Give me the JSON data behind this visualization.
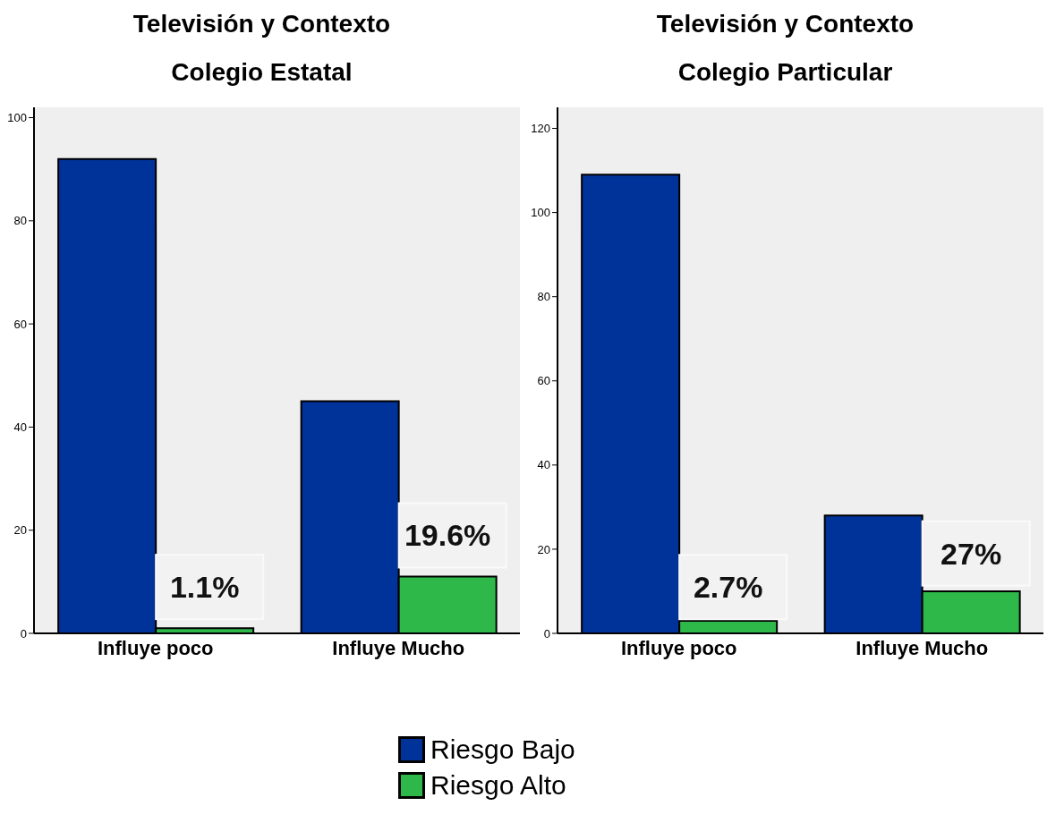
{
  "chart_data": [
    {
      "type": "bar",
      "title": "Televisión y Contexto",
      "subtitle": "Colegio Estatal",
      "categories": [
        "Influye poco",
        "Influye Mucho"
      ],
      "ylim": [
        0,
        102
      ],
      "yticks": [
        0,
        20,
        40,
        60,
        80,
        100
      ],
      "legend": "bottom",
      "series": [
        {
          "name": "Riesgo Bajo",
          "color": "#003399",
          "values": [
            92,
            45
          ]
        },
        {
          "name": "Riesgo Alto",
          "color": "#2eb84a",
          "values": [
            1,
            11
          ]
        }
      ],
      "annotations": [
        {
          "text": "1.1%",
          "x": "Influye poco",
          "y": 9
        },
        {
          "text": "19.6%",
          "x": "Influye Mucho",
          "y": 19
        }
      ]
    },
    {
      "type": "bar",
      "title": "Televisión y Contexto",
      "subtitle": "Colegio Particular",
      "categories": [
        "Influye poco",
        "Influye Mucho"
      ],
      "ylim": [
        0,
        125
      ],
      "yticks": [
        0,
        20,
        40,
        60,
        80,
        100,
        120
      ],
      "legend": "bottom",
      "series": [
        {
          "name": "Riesgo Bajo",
          "color": "#003399",
          "values": [
            109,
            28
          ]
        },
        {
          "name": "Riesgo Alto",
          "color": "#2eb84a",
          "values": [
            3,
            10
          ]
        }
      ],
      "annotations": [
        {
          "text": "2.7%",
          "x": "Influye poco",
          "y": 11
        },
        {
          "text": "27%",
          "x": "Influye Mucho",
          "y": 19
        }
      ]
    }
  ]
}
